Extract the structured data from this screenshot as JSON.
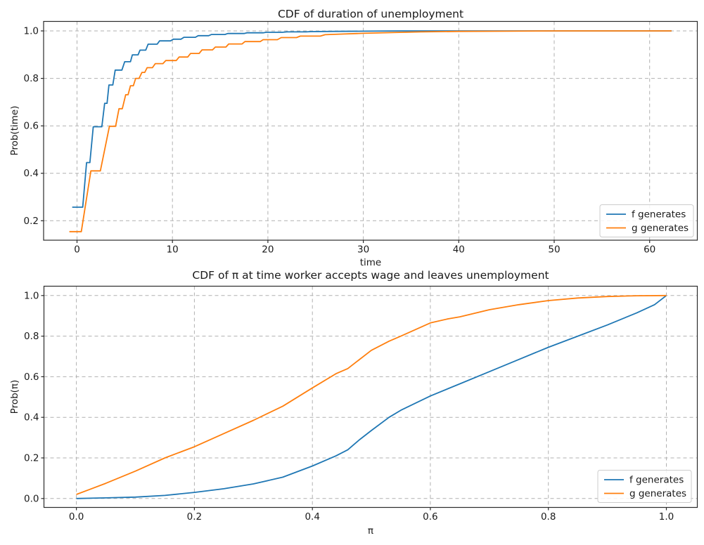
{
  "figure": {
    "background": "#ffffff"
  },
  "colors": {
    "f_line": "#1f77b4",
    "g_line": "#ff7f0e",
    "grid": "#b0b0b0",
    "frame": "#2b2b2b",
    "legend_border": "#cccccc",
    "text": "#1a1a1a"
  },
  "chart_data": [
    {
      "type": "line",
      "title": "CDF of duration of unemployment",
      "xlabel": "time",
      "ylabel": "Prob(time)",
      "xlim": [
        -3.5,
        65.0
      ],
      "ylim": [
        0.118,
        1.04
      ],
      "grid": true,
      "legend_position": "lower right",
      "xticks": [
        [
          0,
          "0"
        ],
        [
          10,
          "10"
        ],
        [
          20,
          "20"
        ],
        [
          30,
          "30"
        ],
        [
          40,
          "40"
        ],
        [
          50,
          "50"
        ],
        [
          60,
          "60"
        ]
      ],
      "yticks": [
        [
          0.2,
          "0.2"
        ],
        [
          0.4,
          "0.4"
        ],
        [
          0.6,
          "0.6"
        ],
        [
          0.8,
          "0.8"
        ],
        [
          1.0,
          "1.0"
        ]
      ],
      "series": [
        {
          "name": "f generates",
          "color": "#1f77b4",
          "points": [
            [
              -0.5,
              0.257
            ],
            [
              0.6,
              0.257
            ],
            [
              1.0,
              0.445
            ],
            [
              1.35,
              0.445
            ],
            [
              1.7,
              0.596
            ],
            [
              2.6,
              0.596
            ],
            [
              2.9,
              0.695
            ],
            [
              3.15,
              0.695
            ],
            [
              3.35,
              0.772
            ],
            [
              3.75,
              0.772
            ],
            [
              4.0,
              0.835
            ],
            [
              4.7,
              0.835
            ],
            [
              5.0,
              0.87
            ],
            [
              5.6,
              0.87
            ],
            [
              5.8,
              0.899
            ],
            [
              6.4,
              0.899
            ],
            [
              6.6,
              0.919
            ],
            [
              7.2,
              0.919
            ],
            [
              7.45,
              0.944
            ],
            [
              8.4,
              0.944
            ],
            [
              8.65,
              0.958
            ],
            [
              9.8,
              0.958
            ],
            [
              10.1,
              0.965
            ],
            [
              10.9,
              0.965
            ],
            [
              11.2,
              0.973
            ],
            [
              12.4,
              0.973
            ],
            [
              12.7,
              0.98
            ],
            [
              13.8,
              0.98
            ],
            [
              14.1,
              0.985
            ],
            [
              15.5,
              0.985
            ],
            [
              15.8,
              0.989
            ],
            [
              17.5,
              0.989
            ],
            [
              17.8,
              0.992
            ],
            [
              19.5,
              0.992
            ],
            [
              19.8,
              0.994
            ],
            [
              21.5,
              0.994
            ],
            [
              22.0,
              0.996
            ],
            [
              24.0,
              0.996
            ],
            [
              24.5,
              0.997
            ],
            [
              27.0,
              0.998
            ],
            [
              30.0,
              0.999
            ],
            [
              34.0,
              1.0
            ],
            [
              62.3,
              1.0
            ]
          ]
        },
        {
          "name": "g generates",
          "color": "#ff7f0e",
          "points": [
            [
              -0.8,
              0.154
            ],
            [
              0.45,
              0.154
            ],
            [
              1.45,
              0.41
            ],
            [
              2.45,
              0.41
            ],
            [
              3.4,
              0.598
            ],
            [
              4.05,
              0.598
            ],
            [
              4.4,
              0.672
            ],
            [
              4.75,
              0.672
            ],
            [
              5.1,
              0.731
            ],
            [
              5.35,
              0.731
            ],
            [
              5.6,
              0.769
            ],
            [
              5.9,
              0.769
            ],
            [
              6.15,
              0.8
            ],
            [
              6.5,
              0.8
            ],
            [
              6.8,
              0.825
            ],
            [
              7.1,
              0.825
            ],
            [
              7.35,
              0.845
            ],
            [
              7.9,
              0.845
            ],
            [
              8.2,
              0.862
            ],
            [
              9.0,
              0.862
            ],
            [
              9.3,
              0.875
            ],
            [
              10.4,
              0.875
            ],
            [
              10.7,
              0.89
            ],
            [
              11.6,
              0.89
            ],
            [
              11.9,
              0.905
            ],
            [
              12.8,
              0.905
            ],
            [
              13.1,
              0.92
            ],
            [
              14.2,
              0.92
            ],
            [
              14.5,
              0.932
            ],
            [
              15.6,
              0.932
            ],
            [
              15.9,
              0.945
            ],
            [
              17.3,
              0.945
            ],
            [
              17.6,
              0.955
            ],
            [
              19.2,
              0.955
            ],
            [
              19.5,
              0.963
            ],
            [
              21.0,
              0.963
            ],
            [
              21.4,
              0.972
            ],
            [
              23.0,
              0.972
            ],
            [
              23.4,
              0.978
            ],
            [
              25.5,
              0.978
            ],
            [
              26.0,
              0.984
            ],
            [
              28.0,
              0.987
            ],
            [
              30.0,
              0.99
            ],
            [
              33.0,
              0.993
            ],
            [
              36.0,
              0.996
            ],
            [
              40.0,
              0.998
            ],
            [
              45.0,
              0.999
            ],
            [
              50.0,
              1.0
            ],
            [
              62.3,
              1.0
            ]
          ]
        }
      ]
    },
    {
      "type": "line",
      "title": "CDF of π at time worker accepts wage and leaves unemployment",
      "xlabel": "π",
      "ylabel": "Prob(π)",
      "xlim": [
        -0.055,
        1.0525
      ],
      "ylim": [
        -0.044,
        1.046
      ],
      "grid": true,
      "legend_position": "lower right",
      "xticks": [
        [
          0.0,
          "0.0"
        ],
        [
          0.2,
          "0.2"
        ],
        [
          0.4,
          "0.4"
        ],
        [
          0.6,
          "0.6"
        ],
        [
          0.8,
          "0.8"
        ],
        [
          1.0,
          "1.0"
        ]
      ],
      "yticks": [
        [
          0.0,
          "0.0"
        ],
        [
          0.2,
          "0.2"
        ],
        [
          0.4,
          "0.4"
        ],
        [
          0.6,
          "0.6"
        ],
        [
          0.8,
          "0.8"
        ],
        [
          1.0,
          "1.0"
        ]
      ],
      "series": [
        {
          "name": "f generates",
          "color": "#1f77b4",
          "points": [
            [
              0.0,
              0.0
            ],
            [
              0.05,
              0.003
            ],
            [
              0.1,
              0.007
            ],
            [
              0.15,
              0.015
            ],
            [
              0.2,
              0.03
            ],
            [
              0.25,
              0.048
            ],
            [
              0.3,
              0.072
            ],
            [
              0.35,
              0.105
            ],
            [
              0.4,
              0.16
            ],
            [
              0.44,
              0.21
            ],
            [
              0.46,
              0.24
            ],
            [
              0.48,
              0.29
            ],
            [
              0.5,
              0.335
            ],
            [
              0.53,
              0.4
            ],
            [
              0.55,
              0.435
            ],
            [
              0.6,
              0.505
            ],
            [
              0.65,
              0.565
            ],
            [
              0.7,
              0.625
            ],
            [
              0.75,
              0.685
            ],
            [
              0.8,
              0.745
            ],
            [
              0.85,
              0.8
            ],
            [
              0.9,
              0.855
            ],
            [
              0.95,
              0.915
            ],
            [
              0.98,
              0.955
            ],
            [
              1.0,
              1.0
            ]
          ]
        },
        {
          "name": "g generates",
          "color": "#ff7f0e",
          "points": [
            [
              0.0,
              0.02
            ],
            [
              0.05,
              0.075
            ],
            [
              0.1,
              0.135
            ],
            [
              0.15,
              0.2
            ],
            [
              0.2,
              0.255
            ],
            [
              0.25,
              0.32
            ],
            [
              0.3,
              0.385
            ],
            [
              0.35,
              0.455
            ],
            [
              0.4,
              0.545
            ],
            [
              0.44,
              0.615
            ],
            [
              0.46,
              0.64
            ],
            [
              0.5,
              0.73
            ],
            [
              0.53,
              0.775
            ],
            [
              0.55,
              0.8
            ],
            [
              0.6,
              0.865
            ],
            [
              0.63,
              0.885
            ],
            [
              0.65,
              0.895
            ],
            [
              0.7,
              0.93
            ],
            [
              0.75,
              0.955
            ],
            [
              0.8,
              0.975
            ],
            [
              0.85,
              0.988
            ],
            [
              0.9,
              0.995
            ],
            [
              0.95,
              0.999
            ],
            [
              1.0,
              1.0
            ]
          ]
        }
      ]
    }
  ]
}
